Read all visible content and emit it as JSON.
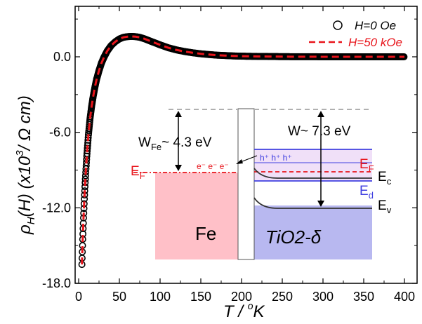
{
  "chart_data": {
    "type": "scatter",
    "xlabel": "T / °K",
    "xlabel_parts": {
      "t": "T",
      "slash": " / ",
      "deg": "o",
      "k": "K"
    },
    "ylabel_parts": {
      "rho": "ρ",
      "sub": "H",
      "h": "(H) (x10",
      "sup": "3",
      "unit": "/ Ω cm)"
    },
    "xlim": [
      0,
      420
    ],
    "ylim": [
      -18,
      4.5
    ],
    "x_ticks": [
      0,
      50,
      100,
      150,
      200,
      250,
      300,
      350,
      400
    ],
    "x_tick_labels": [
      "0",
      "50",
      "100",
      "150",
      "200",
      "250",
      "300",
      "350",
      "400"
    ],
    "y_ticks": [
      -18,
      -12,
      -6,
      0
    ],
    "y_tick_labels": [
      "-18.0",
      "-12.0",
      "-6.0",
      "0.0"
    ],
    "legend_position": "top-right",
    "series": [
      {
        "name": "H=0 Oe",
        "style": "circles",
        "color": "#000000",
        "x": [
          4,
          5,
          6,
          7,
          8,
          9,
          10,
          12,
          14,
          16,
          18,
          20,
          22,
          25,
          28,
          31,
          35,
          40,
          45,
          50,
          55,
          60,
          65,
          70,
          75,
          80,
          90,
          100,
          110,
          120,
          130,
          140,
          150,
          160,
          170,
          180,
          190,
          200,
          220,
          240,
          260,
          280,
          300,
          320,
          340,
          360,
          380,
          400
        ],
        "y": [
          -16.5,
          -14.5,
          -12.8,
          -11.3,
          -10.0,
          -8.9,
          -7.9,
          -6.2,
          -4.9,
          -3.9,
          -3.1,
          -2.4,
          -1.8,
          -1.1,
          -0.5,
          -0.05,
          0.45,
          0.9,
          1.2,
          1.42,
          1.55,
          1.6,
          1.62,
          1.6,
          1.55,
          1.45,
          1.2,
          0.95,
          0.72,
          0.55,
          0.42,
          0.32,
          0.24,
          0.18,
          0.13,
          0.1,
          0.07,
          0.05,
          0.03,
          0.02,
          0.01,
          0.01,
          0.0,
          0.0,
          0.0,
          0.0,
          0.0,
          0.0
        ]
      },
      {
        "name": "H=50 kOe",
        "style": "dashed",
        "color": "#e8141b",
        "x": [
          4,
          5,
          6,
          7,
          8,
          9,
          10,
          12,
          14,
          16,
          18,
          20,
          22,
          25,
          28,
          31,
          35,
          40,
          45,
          50,
          55,
          60,
          65,
          70,
          75,
          80,
          90,
          100,
          110,
          120,
          130,
          140,
          150,
          160,
          170,
          180,
          190,
          200,
          220,
          240,
          260,
          280,
          300,
          320,
          340,
          360,
          380,
          400
        ],
        "y": [
          -16.5,
          -14.5,
          -12.8,
          -11.3,
          -10.0,
          -8.9,
          -7.9,
          -6.2,
          -4.9,
          -3.9,
          -3.1,
          -2.4,
          -1.8,
          -1.1,
          -0.5,
          -0.05,
          0.45,
          0.9,
          1.2,
          1.42,
          1.55,
          1.6,
          1.62,
          1.6,
          1.55,
          1.45,
          1.2,
          0.95,
          0.72,
          0.55,
          0.42,
          0.32,
          0.24,
          0.18,
          0.13,
          0.1,
          0.07,
          0.05,
          0.03,
          0.02,
          0.01,
          0.01,
          0.0,
          0.0,
          0.0,
          0.0,
          0.0,
          0.0
        ]
      }
    ],
    "inset": {
      "fe_label": "Fe",
      "tio2_label": "TiO2-δ",
      "w_fe_label": {
        "w": "W",
        "sub": "Fe",
        "value": "~ 4.3 eV"
      },
      "w_tio2_label": "W~ 7.3 eV",
      "ef_left": {
        "e": "E",
        "sub": "F"
      },
      "ef_right": {
        "e": "E",
        "sub": "F"
      },
      "ec": {
        "e": "E",
        "sub": "c"
      },
      "ed": {
        "e": "E",
        "sub": "d"
      },
      "ev": {
        "e": "E",
        "sub": "v"
      },
      "electrons": "e⁻ e⁻ e⁻",
      "holes": "h⁺ h⁺ h⁺",
      "colors": {
        "fe_fill": "#ffc0c8",
        "tio2_fill": "#b8b8f0",
        "band_fill": "#f0e0f8",
        "blue_line": "#4040e0",
        "red": "#e8141b",
        "gray_dash": "#b0b0b0"
      }
    }
  }
}
